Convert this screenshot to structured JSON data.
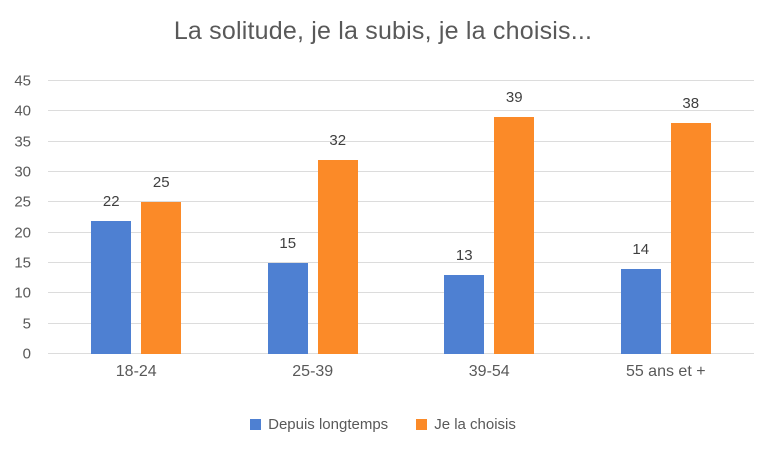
{
  "chart_data": {
    "type": "bar",
    "title": "La solitude, je la subis, je la choisis...",
    "categories": [
      "18-24",
      "25-39",
      "39-54",
      "55 ans et +"
    ],
    "series": [
      {
        "name": "Depuis longtemps",
        "color": "#4E80D2",
        "values": [
          22,
          15,
          13,
          14
        ]
      },
      {
        "name": "Je la choisis",
        "color": "#FB8A28",
        "values": [
          25,
          32,
          39,
          38
        ]
      }
    ],
    "value_labels": [
      [
        "22",
        "15",
        "13",
        "14"
      ],
      [
        "25",
        "32",
        "39",
        "38"
      ]
    ],
    "ylim": [
      0,
      45
    ],
    "yticks": [
      0,
      5,
      10,
      15,
      20,
      25,
      30,
      35,
      40,
      45
    ],
    "xlabel": "",
    "ylabel": "",
    "grid": true,
    "gridline_color": "#DCDCDC",
    "legend_position": "bottom",
    "title_color": "#595959",
    "axis_text_color": "#595959",
    "value_label_color": "#3F3F3F"
  }
}
